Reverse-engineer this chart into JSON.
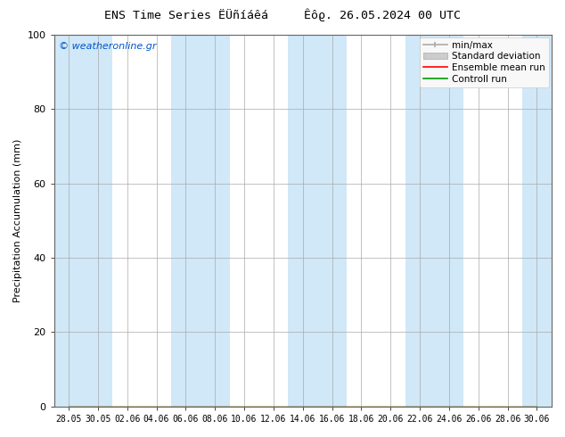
{
  "title": "ENS Time Series ËÜñíáêá     Êôϱ. 26.05.2024 00 UTC",
  "ylabel": "Precipitation Accumulation (mm)",
  "watermark": "© weatheronline.gr",
  "watermark_color": "#0055cc",
  "ylim": [
    0,
    100
  ],
  "yticks": [
    0,
    20,
    40,
    60,
    80,
    100
  ],
  "xtick_labels": [
    "28.05",
    "30.05",
    "02.06",
    "04.06",
    "06.06",
    "08.06",
    "10.06",
    "12.06",
    "14.06",
    "16.06",
    "18.06",
    "20.06",
    "22.06",
    "24.06",
    "26.06",
    "28.06",
    "30.06"
  ],
  "bg_color": "#ffffff",
  "stripe_light": "#d0e8f8",
  "stripe_white": "#ffffff",
  "legend_labels": [
    "min/max",
    "Standard deviation",
    "Ensemble mean run",
    "Controll run"
  ],
  "legend_colors": [
    "#aaaaaa",
    "#cccccc",
    "#ff0000",
    "#009900"
  ],
  "figsize": [
    6.34,
    4.9
  ],
  "dpi": 100
}
